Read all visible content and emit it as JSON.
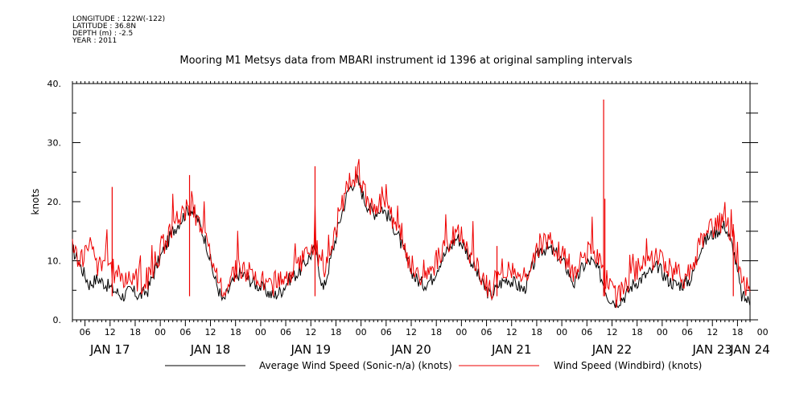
{
  "meta": {
    "longitude": "LONGITUDE : 122W(-122)",
    "latitude": "LATITUDE : 36.8N",
    "depth": "DEPTH (m) : -2.5",
    "year": "YEAR : 2011"
  },
  "chart_data": {
    "type": "line",
    "title": "Mooring M1 Metsys data from MBARI instrument id 1396 at original sampling intervals",
    "ylabel": "knots",
    "xlabel": "",
    "ylim": [
      0,
      40
    ],
    "yticks": [
      "0.",
      "10.",
      "20.",
      "30.",
      "40."
    ],
    "xlim_hours": [
      0,
      162
    ],
    "hour_ticks": [
      "06",
      "12",
      "18",
      "00",
      "06",
      "12",
      "18",
      "00",
      "06",
      "12",
      "18",
      "00",
      "06",
      "12",
      "18",
      "00",
      "06",
      "12",
      "18",
      "00",
      "06",
      "12",
      "18",
      "00",
      "06",
      "12",
      "18",
      "00"
    ],
    "day_labels": [
      {
        "label": "JAN 17",
        "hour": 9
      },
      {
        "label": "JAN 18",
        "hour": 33
      },
      {
        "label": "JAN 19",
        "hour": 57
      },
      {
        "label": "JAN 20",
        "hour": 81
      },
      {
        "label": "JAN 21",
        "hour": 105
      },
      {
        "label": "JAN 22",
        "hour": 129
      },
      {
        "label": "JAN 23",
        "hour": 153
      },
      {
        "label": "JAN 24",
        "hour": 162
      }
    ],
    "grid": false,
    "legend_position": "bottom",
    "series": [
      {
        "name": "Average Wind Speed (Sonic-n/a) (knots)",
        "color": "#000000",
        "x": [
          0,
          2,
          4,
          6,
          8,
          10,
          12,
          14,
          16,
          18,
          20,
          22,
          24,
          26,
          28,
          30,
          32,
          34,
          36,
          38,
          40,
          42,
          44,
          46,
          48,
          50,
          52,
          54,
          56,
          58,
          60,
          62,
          64,
          66,
          68,
          70,
          72,
          74,
          76,
          78,
          80,
          82,
          84,
          86,
          88,
          90,
          92,
          94,
          96,
          98,
          100,
          102,
          104,
          106,
          108,
          110,
          112,
          114,
          116,
          118,
          120,
          122,
          124,
          126,
          128,
          130,
          132,
          134,
          136,
          138,
          140,
          142,
          144,
          146,
          148,
          150,
          152,
          154,
          156,
          158,
          160,
          162
        ],
        "y": [
          12,
          9,
          6,
          7,
          6,
          5,
          4,
          5,
          4,
          5,
          9,
          12,
          15,
          17,
          19,
          17,
          13,
          7,
          3,
          6,
          8,
          7,
          6,
          5,
          4,
          5,
          7,
          8,
          10,
          12,
          5,
          11,
          17,
          22,
          24,
          20,
          18,
          19,
          17,
          14,
          10,
          7,
          6,
          7,
          10,
          12,
          14,
          12,
          9,
          6,
          4,
          6,
          7,
          6,
          5,
          9,
          12,
          12,
          11,
          9,
          6,
          9,
          10,
          8,
          4,
          3,
          4,
          6,
          7,
          8,
          9,
          7,
          6,
          6,
          7,
          12,
          14,
          15,
          16,
          12,
          4,
          3
        ]
      },
      {
        "name": "Wind Speed (Windbird) (knots)",
        "color": "#ee0000",
        "x": [
          0,
          2,
          4,
          6,
          8,
          10,
          12,
          14,
          16,
          18,
          20,
          22,
          24,
          26,
          28,
          30,
          32,
          34,
          36,
          38,
          40,
          42,
          44,
          46,
          48,
          50,
          52,
          54,
          56,
          58,
          60,
          62,
          64,
          66,
          68,
          70,
          72,
          74,
          76,
          78,
          80,
          82,
          84,
          86,
          88,
          90,
          92,
          94,
          96,
          98,
          100,
          102,
          104,
          106,
          108,
          110,
          112,
          114,
          116,
          118,
          120,
          122,
          124,
          126,
          128,
          130,
          132,
          134,
          136,
          138,
          140,
          142,
          144,
          146,
          148,
          150,
          152,
          154,
          156,
          158,
          160,
          162
        ],
        "y": [
          12,
          10,
          13,
          9,
          11,
          8,
          7,
          8,
          6,
          7,
          10,
          13,
          16,
          18,
          19.5,
          17,
          14,
          8,
          4,
          8,
          9,
          8,
          7,
          6,
          6,
          7,
          8,
          9,
          11,
          13,
          7,
          12,
          18,
          23,
          25,
          21,
          19,
          20,
          18,
          15,
          11,
          8,
          7,
          8,
          11,
          13,
          15,
          13,
          10,
          7,
          5,
          8,
          9,
          8,
          7,
          10,
          13,
          13,
          12,
          10,
          8,
          11,
          12,
          10,
          6,
          4,
          5,
          8,
          9,
          10,
          11,
          9,
          8,
          7,
          8,
          13,
          15,
          16,
          17,
          14,
          6,
          5
        ]
      }
    ],
    "spikes": [
      {
        "series": 1,
        "x": 9.5,
        "y": 22.5
      },
      {
        "series": 1,
        "x": 28,
        "y": 24.5
      },
      {
        "series": 1,
        "x": 58,
        "y": 26
      },
      {
        "series": 1,
        "x": 101.5,
        "y": 12.5
      },
      {
        "series": 1,
        "x": 127,
        "y": 37.3
      },
      {
        "series": 1,
        "x": 127.3,
        "y": 20.5
      },
      {
        "series": 1,
        "x": 158,
        "y": 16.2
      }
    ]
  }
}
